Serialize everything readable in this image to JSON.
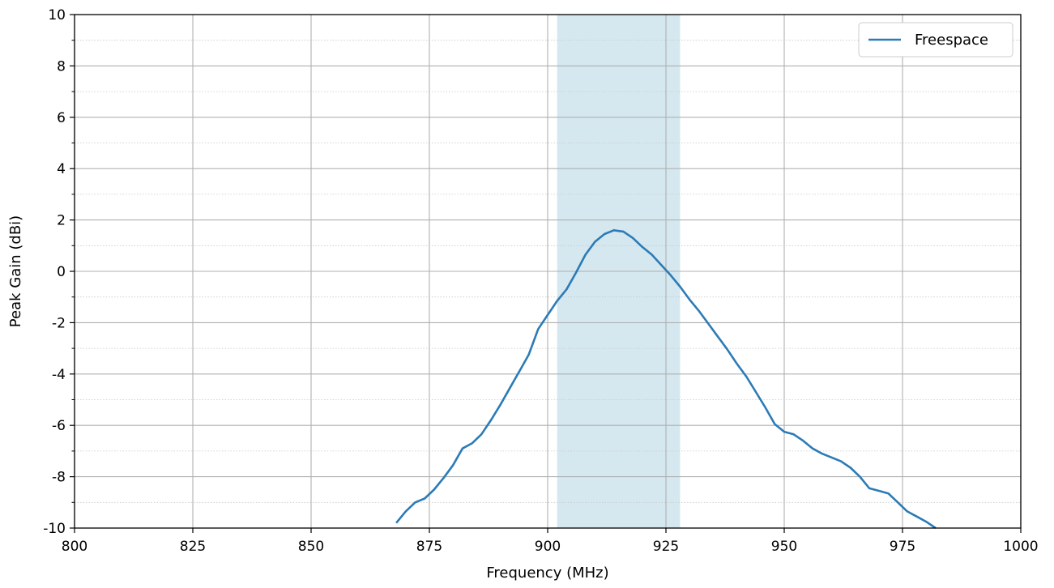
{
  "chart_data": {
    "type": "line",
    "title": "",
    "xlabel": "Frequency (MHz)",
    "ylabel": "Peak Gain (dBi)",
    "xlim": [
      800,
      1000
    ],
    "ylim": [
      -10,
      10
    ],
    "xticks": [
      800,
      825,
      850,
      875,
      900,
      925,
      950,
      975,
      1000
    ],
    "yticks": [
      -10,
      -8,
      -6,
      -4,
      -2,
      0,
      2,
      4,
      6,
      8,
      10
    ],
    "grid": true,
    "minor_grid_y": true,
    "legend_position": "top-right",
    "highlight_band": {
      "x_start": 902,
      "x_end": 928,
      "color": "#d5e8f0"
    },
    "series": [
      {
        "name": "Freespace",
        "color": "#2c7bb6",
        "x": [
          868,
          870,
          872,
          874,
          876,
          878,
          880,
          882,
          884,
          886,
          888,
          890,
          892,
          894,
          896,
          898,
          900,
          902,
          904,
          906,
          908,
          910,
          912,
          914,
          916,
          918,
          920,
          922,
          924,
          926,
          928,
          930,
          932,
          934,
          936,
          938,
          940,
          942,
          944,
          946,
          948,
          950,
          952,
          954,
          956,
          958,
          960,
          962,
          964,
          966,
          968,
          970,
          972,
          974,
          976,
          978,
          980,
          982
        ],
        "y": [
          -9.8,
          -9.35,
          -9.0,
          -8.85,
          -8.5,
          -8.05,
          -7.55,
          -6.9,
          -6.7,
          -6.35,
          -5.8,
          -5.2,
          -4.55,
          -3.9,
          -3.25,
          -2.25,
          -1.7,
          -1.15,
          -0.7,
          -0.05,
          0.65,
          1.15,
          1.45,
          1.6,
          1.55,
          1.3,
          0.95,
          0.65,
          0.25,
          -0.15,
          -0.6,
          -1.1,
          -1.55,
          -2.05,
          -2.55,
          -3.05,
          -3.6,
          -4.1,
          -4.7,
          -5.3,
          -5.95,
          -6.25,
          -6.35,
          -6.6,
          -6.9,
          -7.1,
          -7.25,
          -7.4,
          -7.65,
          -8.0,
          -8.45,
          -8.55,
          -8.65,
          -9.0,
          -9.35,
          -9.55,
          -9.75,
          -10.0
        ]
      }
    ]
  }
}
